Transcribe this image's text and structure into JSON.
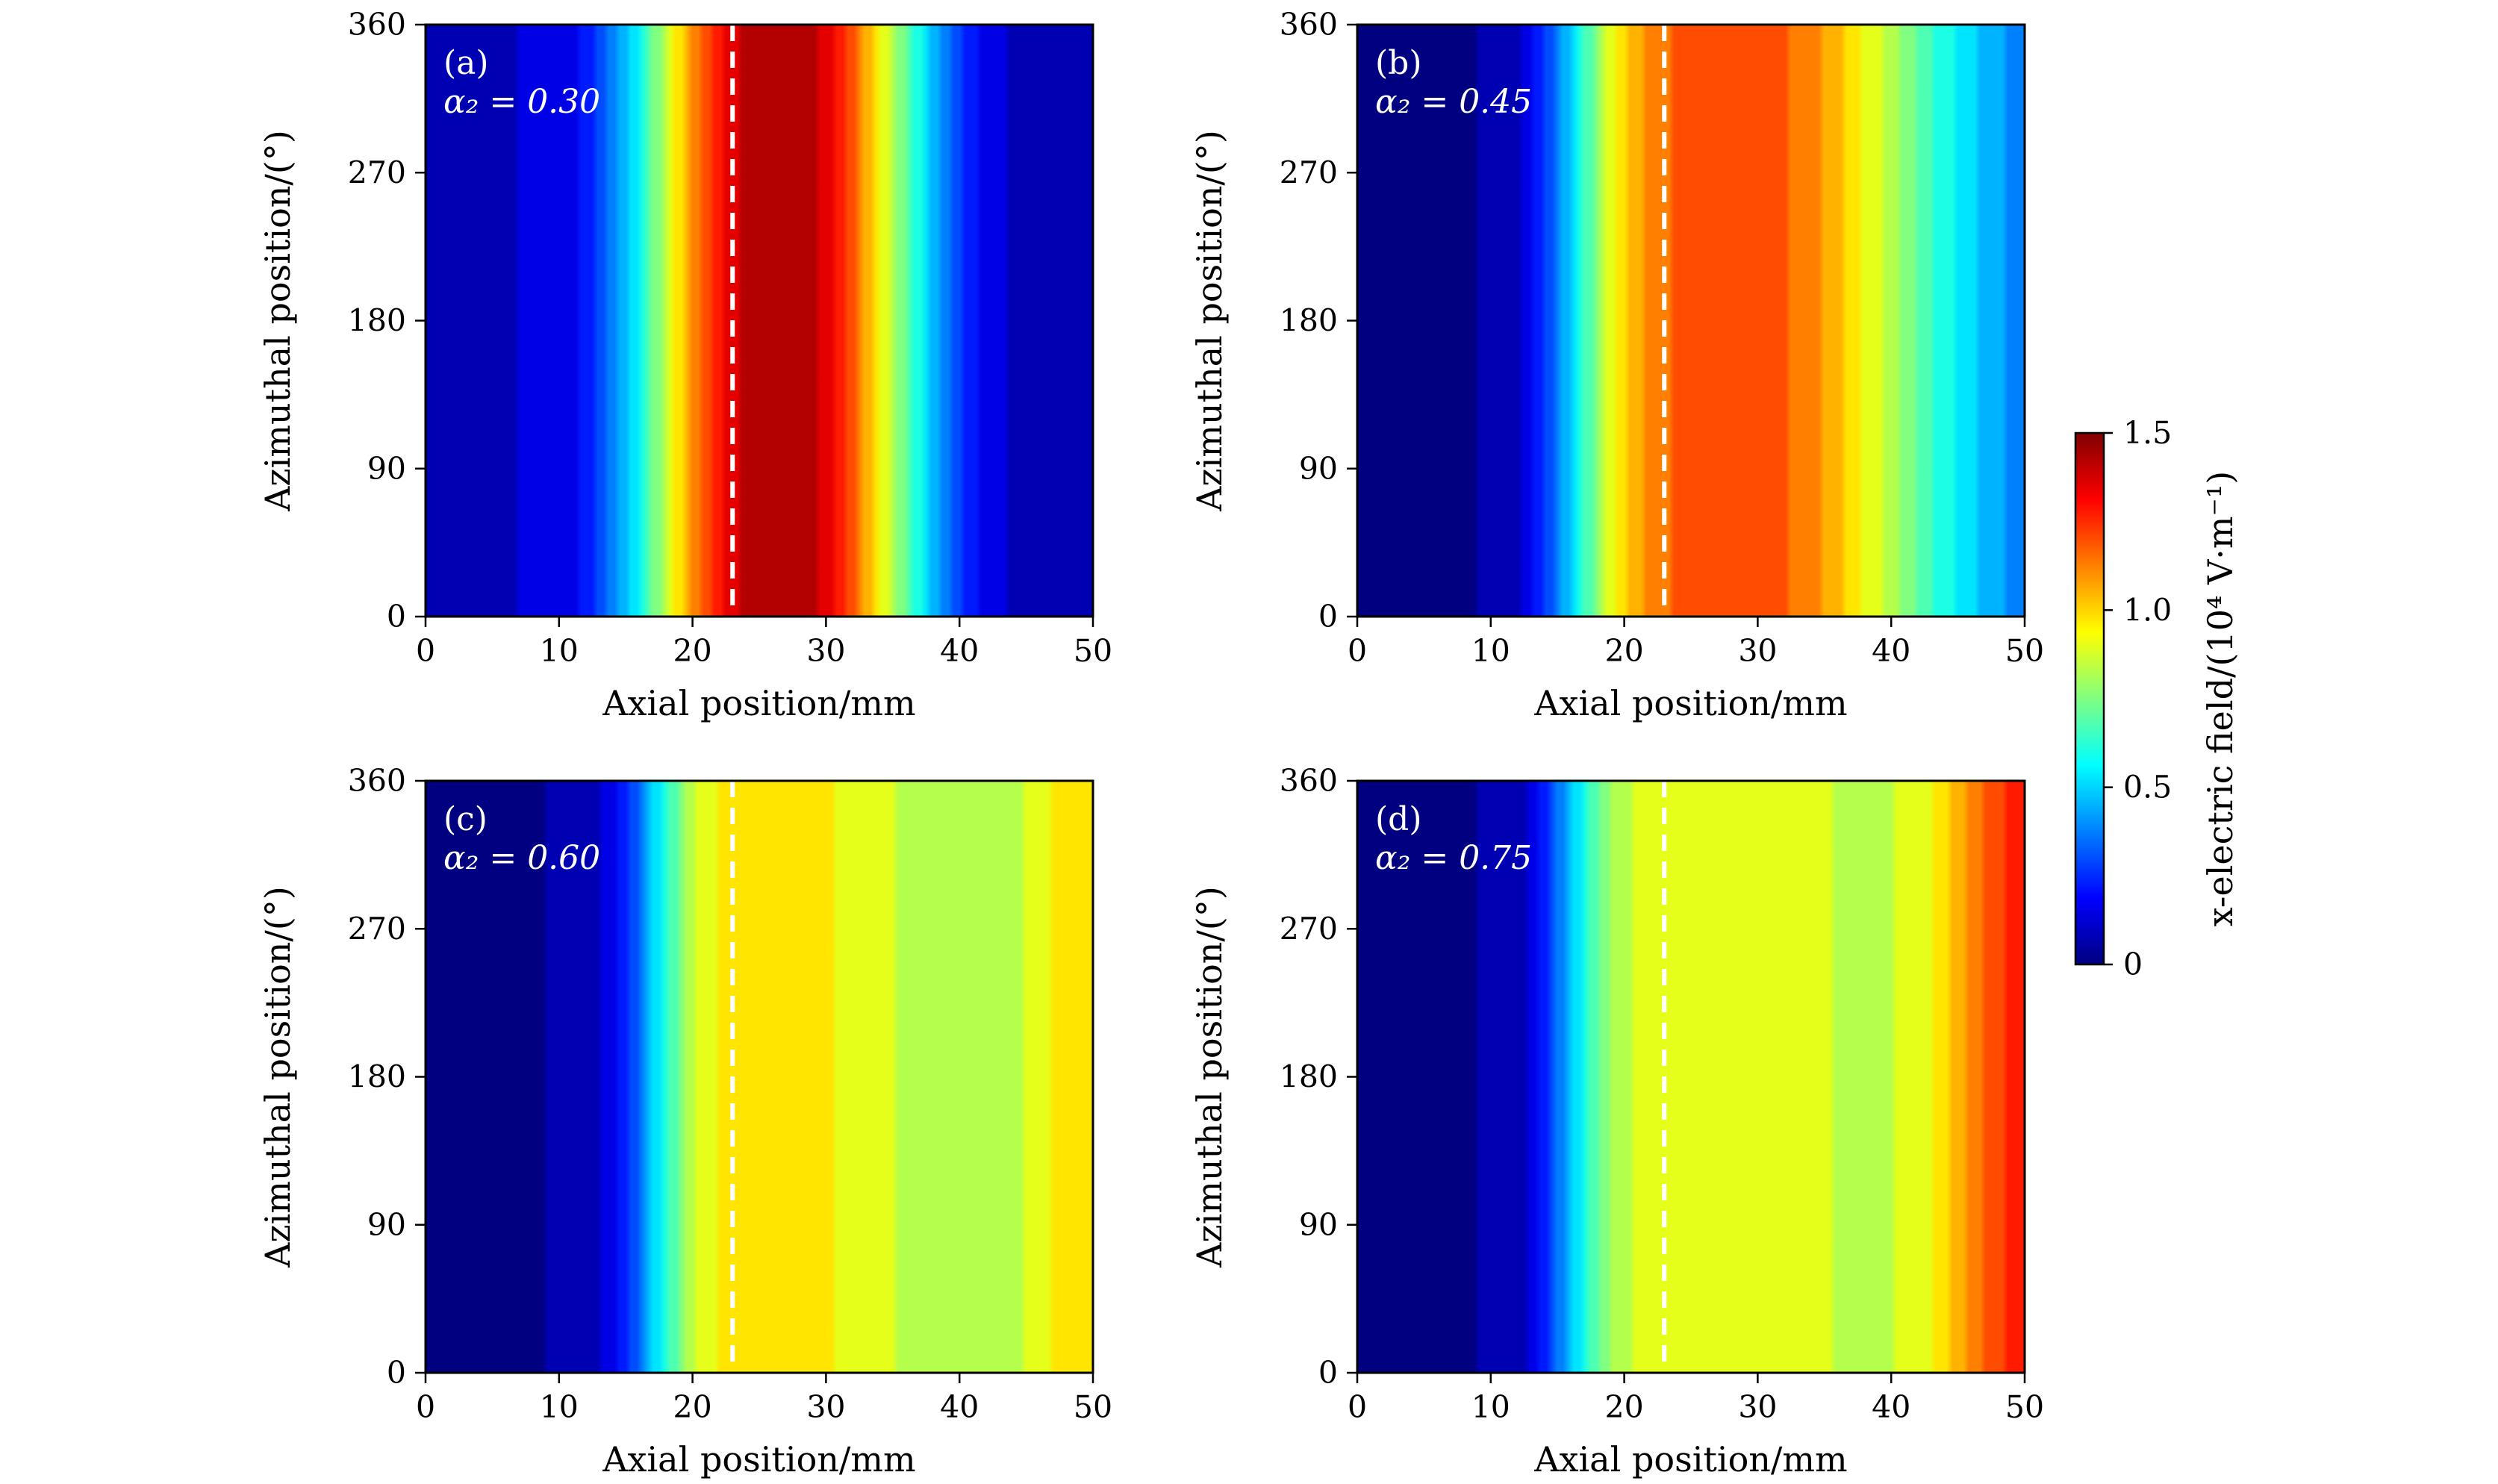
{
  "chart_data": {
    "type": "heatmap",
    "x_label": "Axial position/mm",
    "y_label": "Azimuthal position/(°)",
    "x_ticks": [
      "0",
      "10",
      "20",
      "30",
      "40",
      "50"
    ],
    "y_ticks": [
      "0",
      "90",
      "180",
      "270",
      "360"
    ],
    "xlim": [
      0,
      50
    ],
    "ylim": [
      0,
      360
    ],
    "dashed_line_x": 23,
    "colorbar": {
      "label": "x-electric field/(10⁴ V·m⁻¹)",
      "range": [
        0,
        1.5
      ],
      "ticks": [
        "0",
        "0.5",
        "1.0",
        "1.5"
      ],
      "colormap": "jet"
    },
    "panels": [
      {
        "id": "a",
        "tag": "(a)",
        "alpha_label": "α₂ = 0.30",
        "profile_x": [
          0,
          5,
          8,
          10,
          12,
          14,
          16,
          18,
          20,
          22,
          24,
          26,
          28,
          30,
          32,
          34,
          36,
          38,
          40,
          42,
          44,
          46,
          50
        ],
        "profile_e": [
          0.08,
          0.1,
          0.12,
          0.14,
          0.2,
          0.36,
          0.58,
          0.85,
          1.1,
          1.3,
          1.42,
          1.46,
          1.44,
          1.36,
          1.2,
          0.95,
          0.7,
          0.45,
          0.28,
          0.15,
          0.1,
          0.05,
          0.05
        ]
      },
      {
        "id": "b",
        "tag": "(b)",
        "alpha_label": "α₂ = 0.45",
        "profile_x": [
          0,
          5,
          10,
          12,
          14,
          16,
          18,
          20,
          22,
          24,
          26,
          28,
          30,
          32,
          34,
          36,
          38,
          40,
          42,
          44,
          46,
          48,
          50
        ],
        "profile_e": [
          0.03,
          0.03,
          0.04,
          0.08,
          0.25,
          0.5,
          0.78,
          1.0,
          1.12,
          1.18,
          1.2,
          1.21,
          1.2,
          1.17,
          1.12,
          1.03,
          0.93,
          0.82,
          0.7,
          0.6,
          0.5,
          0.42,
          0.4
        ]
      },
      {
        "id": "c",
        "tag": "(c)",
        "alpha_label": "α₂ = 0.60",
        "profile_x": [
          0,
          5,
          10,
          12,
          14,
          16,
          18,
          20,
          22,
          24,
          26,
          28,
          30,
          32,
          34,
          36,
          38,
          40,
          42,
          44,
          46,
          48,
          50
        ],
        "profile_e": [
          0.03,
          0.03,
          0.04,
          0.06,
          0.15,
          0.35,
          0.62,
          0.85,
          0.95,
          0.99,
          1.0,
          0.98,
          0.95,
          0.91,
          0.88,
          0.85,
          0.83,
          0.82,
          0.82,
          0.84,
          0.9,
          0.98,
          1.0
        ]
      },
      {
        "id": "d",
        "tag": "(d)",
        "alpha_label": "α₂ = 0.75",
        "profile_x": [
          0,
          5,
          10,
          12,
          14,
          16,
          18,
          20,
          22,
          24,
          26,
          28,
          30,
          32,
          34,
          36,
          38,
          40,
          42,
          44,
          46,
          48,
          50
        ],
        "profile_e": [
          0.03,
          0.03,
          0.04,
          0.07,
          0.22,
          0.48,
          0.72,
          0.85,
          0.88,
          0.89,
          0.91,
          0.92,
          0.9,
          0.88,
          0.87,
          0.86,
          0.86,
          0.86,
          0.88,
          0.98,
          1.1,
          1.22,
          1.28
        ]
      }
    ]
  }
}
